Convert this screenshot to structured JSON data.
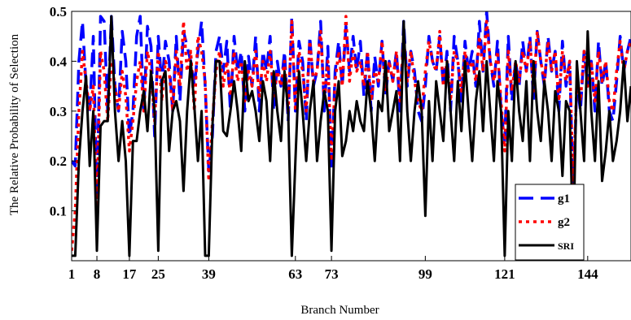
{
  "chart_data": {
    "type": "line",
    "title": "",
    "xlabel": "Branch Number",
    "ylabel": "The Relative Probability of Selection",
    "xlim": [
      1,
      156
    ],
    "ylim": [
      0,
      0.5
    ],
    "x_ticks": [
      1,
      8,
      17,
      25,
      39,
      63,
      73,
      99,
      121,
      144
    ],
    "y_ticks": [
      0.1,
      0.2,
      0.3,
      0.4,
      0.5
    ],
    "y_tick_labels": [
      "0.1",
      "0.2",
      "0.3",
      "0.4",
      "0.5"
    ],
    "grid": false,
    "legend": {
      "position": "bottom-right"
    },
    "series": [
      {
        "name": "g1",
        "color": "#0000ff",
        "style": "dashed",
        "x": [
          1,
          2,
          3,
          4,
          5,
          6,
          7,
          8,
          9,
          10,
          11,
          12,
          13,
          14,
          15,
          16,
          17,
          18,
          19,
          20,
          21,
          22,
          23,
          24,
          25,
          26,
          27,
          28,
          29,
          30,
          31,
          32,
          33,
          34,
          35,
          36,
          37,
          38,
          39,
          40,
          41,
          42,
          43,
          44,
          45,
          46,
          47,
          48,
          49,
          50,
          51,
          52,
          53,
          54,
          55,
          56,
          57,
          58,
          59,
          60,
          61,
          62,
          63,
          64,
          65,
          66,
          67,
          68,
          69,
          70,
          71,
          72,
          73,
          74,
          75,
          76,
          77,
          78,
          79,
          80,
          81,
          82,
          83,
          84,
          85,
          86,
          87,
          88,
          89,
          90,
          91,
          92,
          93,
          94,
          95,
          96,
          97,
          98,
          99,
          100,
          101,
          102,
          103,
          104,
          105,
          106,
          107,
          108,
          109,
          110,
          111,
          112,
          113,
          114,
          115,
          116,
          117,
          118,
          119,
          120,
          121,
          122,
          123,
          124,
          125,
          126,
          127,
          128,
          129,
          130,
          131,
          132,
          133,
          134,
          135,
          136,
          137,
          138,
          139,
          140,
          141,
          142,
          143,
          144,
          145,
          146,
          147,
          148,
          149,
          150,
          151,
          152,
          153,
          154,
          155,
          156
        ],
        "y": [
          0.2,
          0.19,
          0.4,
          0.48,
          0.35,
          0.3,
          0.45,
          0.12,
          0.49,
          0.48,
          0.3,
          0.49,
          0.35,
          0.3,
          0.46,
          0.4,
          0.25,
          0.3,
          0.45,
          0.49,
          0.3,
          0.47,
          0.43,
          0.25,
          0.45,
          0.35,
          0.44,
          0.4,
          0.3,
          0.45,
          0.32,
          0.46,
          0.43,
          0.4,
          0.35,
          0.42,
          0.48,
          0.35,
          0.18,
          0.25,
          0.42,
          0.45,
          0.38,
          0.44,
          0.3,
          0.45,
          0.38,
          0.42,
          0.3,
          0.41,
          0.35,
          0.45,
          0.3,
          0.42,
          0.38,
          0.45,
          0.3,
          0.4,
          0.35,
          0.42,
          0.28,
          0.49,
          0.3,
          0.44,
          0.4,
          0.28,
          0.45,
          0.35,
          0.38,
          0.48,
          0.3,
          0.43,
          0.18,
          0.38,
          0.44,
          0.35,
          0.47,
          0.38,
          0.45,
          0.38,
          0.44,
          0.33,
          0.42,
          0.3,
          0.41,
          0.35,
          0.44,
          0.33,
          0.4,
          0.36,
          0.42,
          0.3,
          0.48,
          0.35,
          0.42,
          0.38,
          0.3,
          0.28,
          0.35,
          0.45,
          0.4,
          0.38,
          0.45,
          0.35,
          0.42,
          0.3,
          0.45,
          0.4,
          0.32,
          0.44,
          0.38,
          0.42,
          0.35,
          0.48,
          0.38,
          0.5,
          0.4,
          0.35,
          0.44,
          0.3,
          0.24,
          0.45,
          0.32,
          0.4,
          0.35,
          0.44,
          0.38,
          0.45,
          0.32,
          0.46,
          0.4,
          0.35,
          0.45,
          0.38,
          0.42,
          0.3,
          0.44,
          0.35,
          0.4,
          0.12,
          0.36,
          0.3,
          0.42,
          0.35,
          0.4,
          0.3,
          0.44,
          0.35,
          0.4,
          0.3,
          0.28,
          0.36,
          0.45,
          0.38,
          0.42,
          0.45
        ]
      },
      {
        "name": "g2",
        "color": "#ff0000",
        "style": "dotted",
        "x": [
          1,
          2,
          3,
          4,
          5,
          6,
          7,
          8,
          9,
          10,
          11,
          12,
          13,
          14,
          15,
          16,
          17,
          18,
          19,
          20,
          21,
          22,
          23,
          24,
          25,
          26,
          27,
          28,
          29,
          30,
          31,
          32,
          33,
          34,
          35,
          36,
          37,
          38,
          39,
          40,
          41,
          42,
          43,
          44,
          45,
          46,
          47,
          48,
          49,
          50,
          51,
          52,
          53,
          54,
          55,
          56,
          57,
          58,
          59,
          60,
          61,
          62,
          63,
          64,
          65,
          66,
          67,
          68,
          69,
          70,
          71,
          72,
          73,
          74,
          75,
          76,
          77,
          78,
          79,
          80,
          81,
          82,
          83,
          84,
          85,
          86,
          87,
          88,
          89,
          90,
          91,
          92,
          93,
          94,
          95,
          96,
          97,
          98,
          99,
          100,
          101,
          102,
          103,
          104,
          105,
          106,
          107,
          108,
          109,
          110,
          111,
          112,
          113,
          114,
          115,
          116,
          117,
          118,
          119,
          120,
          121,
          122,
          123,
          124,
          125,
          126,
          127,
          128,
          129,
          130,
          131,
          132,
          133,
          134,
          135,
          136,
          137,
          138,
          139,
          140,
          141,
          142,
          143,
          144,
          145,
          146,
          147,
          148,
          149,
          150,
          151,
          152,
          153,
          154,
          155,
          156
        ],
        "y": [
          0.02,
          0.1,
          0.3,
          0.42,
          0.36,
          0.3,
          0.35,
          0.1,
          0.42,
          0.38,
          0.28,
          0.4,
          0.35,
          0.3,
          0.38,
          0.33,
          0.22,
          0.28,
          0.36,
          0.4,
          0.3,
          0.42,
          0.38,
          0.28,
          0.42,
          0.32,
          0.4,
          0.38,
          0.3,
          0.42,
          0.35,
          0.48,
          0.38,
          0.42,
          0.3,
          0.45,
          0.42,
          0.36,
          0.16,
          0.28,
          0.38,
          0.42,
          0.35,
          0.4,
          0.33,
          0.42,
          0.36,
          0.4,
          0.32,
          0.38,
          0.35,
          0.42,
          0.33,
          0.4,
          0.36,
          0.42,
          0.33,
          0.38,
          0.35,
          0.4,
          0.3,
          0.48,
          0.3,
          0.42,
          0.38,
          0.3,
          0.44,
          0.36,
          0.38,
          0.46,
          0.32,
          0.4,
          0.2,
          0.36,
          0.42,
          0.35,
          0.49,
          0.36,
          0.42,
          0.38,
          0.4,
          0.35,
          0.42,
          0.32,
          0.38,
          0.36,
          0.44,
          0.34,
          0.4,
          0.36,
          0.42,
          0.32,
          0.45,
          0.36,
          0.42,
          0.36,
          0.32,
          0.3,
          0.38,
          0.44,
          0.4,
          0.38,
          0.46,
          0.35,
          0.4,
          0.32,
          0.42,
          0.4,
          0.34,
          0.42,
          0.38,
          0.4,
          0.36,
          0.45,
          0.38,
          0.48,
          0.4,
          0.36,
          0.42,
          0.32,
          0.22,
          0.42,
          0.34,
          0.4,
          0.36,
          0.42,
          0.38,
          0.44,
          0.34,
          0.46,
          0.4,
          0.36,
          0.44,
          0.38,
          0.42,
          0.32,
          0.42,
          0.36,
          0.4,
          0.15,
          0.36,
          0.32,
          0.42,
          0.35,
          0.4,
          0.32,
          0.42,
          0.36,
          0.4,
          0.32,
          0.3,
          0.38,
          0.44,
          0.38,
          0.42,
          0.44
        ]
      },
      {
        "name": "SRI",
        "color": "#000000",
        "style": "solid",
        "x": [
          1,
          2,
          3,
          4,
          5,
          6,
          7,
          8,
          9,
          10,
          11,
          12,
          13,
          14,
          15,
          16,
          17,
          18,
          19,
          20,
          21,
          22,
          23,
          24,
          25,
          26,
          27,
          28,
          29,
          30,
          31,
          32,
          33,
          34,
          35,
          36,
          37,
          38,
          39,
          40,
          41,
          42,
          43,
          44,
          45,
          46,
          47,
          48,
          49,
          50,
          51,
          52,
          53,
          54,
          55,
          56,
          57,
          58,
          59,
          60,
          61,
          62,
          63,
          64,
          65,
          66,
          67,
          68,
          69,
          70,
          71,
          72,
          73,
          74,
          75,
          76,
          77,
          78,
          79,
          80,
          81,
          82,
          83,
          84,
          85,
          86,
          87,
          88,
          89,
          90,
          91,
          92,
          93,
          94,
          95,
          96,
          97,
          98,
          99,
          100,
          101,
          102,
          103,
          104,
          105,
          106,
          107,
          108,
          109,
          110,
          111,
          112,
          113,
          114,
          115,
          116,
          117,
          118,
          119,
          120,
          121,
          122,
          123,
          124,
          125,
          126,
          127,
          128,
          129,
          130,
          131,
          132,
          133,
          134,
          135,
          136,
          137,
          138,
          139,
          140,
          141,
          142,
          143,
          144,
          145,
          146,
          147,
          148,
          149,
          150,
          151,
          152,
          153,
          154,
          155,
          156
        ],
        "y": [
          0.01,
          0.01,
          0.2,
          0.3,
          0.37,
          0.19,
          0.3,
          0.02,
          0.27,
          0.28,
          0.28,
          0.49,
          0.3,
          0.2,
          0.28,
          0.2,
          0.01,
          0.24,
          0.24,
          0.3,
          0.34,
          0.26,
          0.38,
          0.3,
          0.02,
          0.36,
          0.38,
          0.22,
          0.3,
          0.32,
          0.28,
          0.14,
          0.3,
          0.4,
          0.31,
          0.2,
          0.3,
          0.01,
          0.01,
          0.27,
          0.4,
          0.4,
          0.26,
          0.25,
          0.3,
          0.36,
          0.3,
          0.22,
          0.4,
          0.32,
          0.34,
          0.3,
          0.24,
          0.36,
          0.32,
          0.2,
          0.38,
          0.3,
          0.24,
          0.38,
          0.3,
          0.01,
          0.2,
          0.38,
          0.3,
          0.2,
          0.3,
          0.36,
          0.2,
          0.28,
          0.34,
          0.3,
          0.02,
          0.3,
          0.36,
          0.21,
          0.24,
          0.3,
          0.26,
          0.32,
          0.28,
          0.26,
          0.36,
          0.3,
          0.2,
          0.32,
          0.3,
          0.4,
          0.26,
          0.3,
          0.34,
          0.2,
          0.48,
          0.3,
          0.2,
          0.3,
          0.36,
          0.3,
          0.09,
          0.32,
          0.2,
          0.36,
          0.3,
          0.24,
          0.4,
          0.3,
          0.2,
          0.36,
          0.26,
          0.4,
          0.3,
          0.2,
          0.32,
          0.38,
          0.26,
          0.4,
          0.3,
          0.2,
          0.36,
          0.3,
          0.01,
          0.3,
          0.2,
          0.4,
          0.3,
          0.24,
          0.36,
          0.2,
          0.4,
          0.3,
          0.24,
          0.36,
          0.3,
          0.2,
          0.34,
          0.3,
          0.17,
          0.32,
          0.3,
          0.02,
          0.4,
          0.3,
          0.2,
          0.46,
          0.3,
          0.2,
          0.36,
          0.16,
          0.22,
          0.3,
          0.2,
          0.24,
          0.3,
          0.4,
          0.28,
          0.35
        ]
      }
    ]
  }
}
